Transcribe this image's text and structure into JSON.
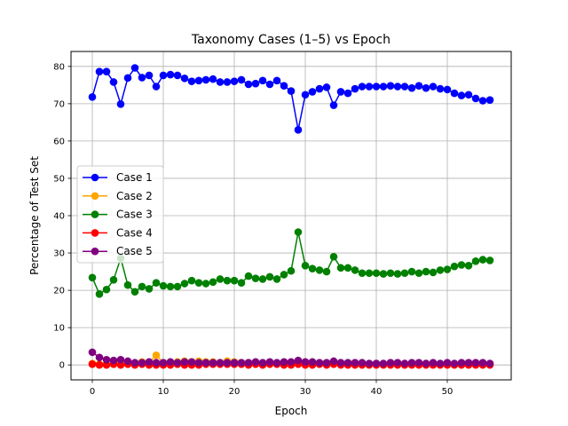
{
  "chart_data": {
    "type": "line",
    "title": "Taxonomy Cases (1–5) vs Epoch",
    "xlabel": "Epoch",
    "ylabel": "Percentage of Test Set",
    "xlim": [
      -3.0,
      59.0
    ],
    "ylim": [
      -4.0,
      84.0
    ],
    "xticks": [
      0,
      10,
      20,
      30,
      40,
      50
    ],
    "yticks": [
      0,
      10,
      20,
      30,
      40,
      50,
      60,
      70,
      80
    ],
    "grid": true,
    "legend_position": "center-left",
    "x": [
      0,
      1,
      2,
      3,
      4,
      5,
      6,
      7,
      8,
      9,
      10,
      11,
      12,
      13,
      14,
      15,
      16,
      17,
      18,
      19,
      20,
      21,
      22,
      23,
      24,
      25,
      26,
      27,
      28,
      29,
      30,
      31,
      32,
      33,
      34,
      35,
      36,
      37,
      38,
      39,
      40,
      41,
      42,
      43,
      44,
      45,
      46,
      47,
      48,
      49,
      50,
      51,
      52,
      53,
      54,
      55,
      56
    ],
    "series": [
      {
        "name": "Case 1",
        "color": "#0000ff",
        "values": [
          71.8,
          78.6,
          78.6,
          75.8,
          69.9,
          76.9,
          79.6,
          77.0,
          77.6,
          74.6,
          77.6,
          77.8,
          77.6,
          76.8,
          76.0,
          76.2,
          76.4,
          76.6,
          75.8,
          75.8,
          76.0,
          76.4,
          75.2,
          75.4,
          76.2,
          75.2,
          76.2,
          74.8,
          73.4,
          63.0,
          72.4,
          73.2,
          74.0,
          74.4,
          69.6,
          73.2,
          72.8,
          74.0,
          74.6,
          74.6,
          74.6,
          74.6,
          74.8,
          74.6,
          74.6,
          74.2,
          74.8,
          74.2,
          74.6,
          74.0,
          73.8,
          72.8,
          72.2,
          72.4,
          71.4,
          70.8,
          71.0
        ]
      },
      {
        "name": "Case 2",
        "color": "#ffa500",
        "values": [
          0.4,
          0.2,
          0.2,
          0.2,
          0.6,
          0.2,
          0.2,
          0.8,
          0.6,
          2.6,
          0.6,
          0.6,
          0.8,
          1.0,
          0.8,
          1.0,
          0.8,
          0.8,
          0.6,
          1.0,
          0.8,
          0.6,
          0.6,
          0.4,
          0.4,
          0.4,
          0.4,
          0.4,
          0.4,
          0.6,
          0.4,
          0.4,
          0.4,
          0.4,
          0.4,
          0.4,
          0.4,
          0.4,
          0.4,
          0.2,
          0.4,
          0.2,
          0.4,
          0.4,
          0.4,
          0.4,
          0.2,
          0.4,
          0.2,
          0.2,
          0.2,
          0.2,
          0.2,
          0.2,
          0.2,
          0.2,
          0.2
        ]
      },
      {
        "name": "Case 3",
        "color": "#008000",
        "values": [
          23.4,
          19.0,
          20.2,
          22.8,
          28.6,
          21.4,
          19.6,
          21.0,
          20.4,
          22.0,
          21.2,
          21.0,
          21.0,
          21.8,
          22.6,
          22.0,
          21.8,
          22.2,
          23.0,
          22.6,
          22.6,
          22.0,
          23.8,
          23.2,
          23.0,
          23.6,
          23.0,
          24.2,
          25.2,
          35.6,
          26.6,
          25.8,
          25.4,
          25.0,
          29.0,
          26.0,
          26.0,
          25.4,
          24.6,
          24.6,
          24.6,
          24.4,
          24.6,
          24.4,
          24.6,
          25.0,
          24.6,
          25.0,
          24.8,
          25.4,
          25.6,
          26.4,
          26.8,
          26.6,
          27.8,
          28.2,
          28.0
        ]
      },
      {
        "name": "Case 4",
        "color": "#ff0000",
        "values": [
          0.2,
          0.0,
          0.0,
          0.2,
          0.0,
          0.2,
          0.0,
          0.2,
          0.0,
          0.0,
          0.0,
          0.0,
          0.2,
          0.0,
          0.0,
          0.0,
          0.2,
          0.2,
          0.2,
          0.2,
          0.2,
          0.2,
          0.0,
          0.2,
          0.0,
          0.2,
          0.2,
          0.0,
          0.0,
          0.2,
          0.0,
          0.0,
          0.2,
          0.0,
          0.2,
          0.0,
          0.0,
          0.0,
          0.0,
          0.0,
          0.0,
          0.0,
          0.0,
          0.0,
          0.0,
          0.0,
          0.0,
          0.0,
          0.0,
          0.0,
          0.0,
          0.0,
          0.0,
          0.0,
          0.0,
          0.0,
          0.0
        ]
      },
      {
        "name": "Case 5",
        "color": "#800080",
        "values": [
          3.4,
          2.0,
          1.4,
          1.2,
          1.4,
          1.0,
          0.6,
          0.6,
          0.8,
          0.6,
          0.6,
          0.8,
          0.6,
          0.8,
          0.8,
          0.6,
          0.6,
          0.6,
          0.6,
          0.6,
          0.6,
          0.6,
          0.6,
          0.8,
          0.6,
          0.8,
          0.6,
          0.8,
          0.8,
          1.2,
          0.8,
          0.8,
          0.6,
          0.6,
          1.0,
          0.6,
          0.6,
          0.6,
          0.6,
          0.4,
          0.4,
          0.4,
          0.6,
          0.6,
          0.4,
          0.6,
          0.6,
          0.4,
          0.6,
          0.4,
          0.6,
          0.4,
          0.6,
          0.6,
          0.6,
          0.6,
          0.4
        ]
      }
    ]
  }
}
